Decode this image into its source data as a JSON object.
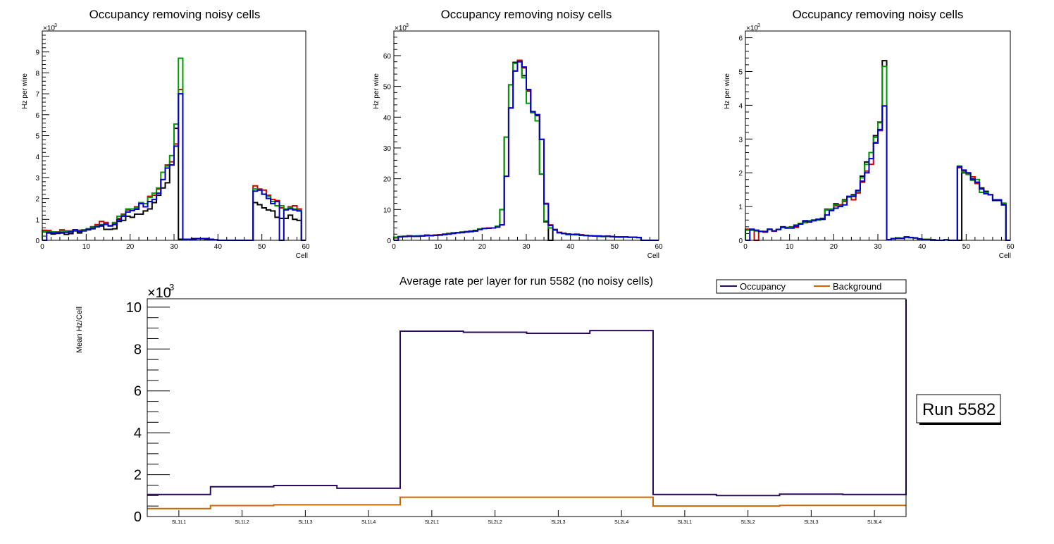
{
  "chart_data": [
    {
      "type": "histogram",
      "title": "Occupancy removing noisy cells",
      "xlabel": "Cell",
      "ylabel": "Hz per wire",
      "y_multiplier": "×10^3",
      "xlim": [
        0,
        60
      ],
      "ylim": [
        0,
        10
      ],
      "x_ticks": [
        0,
        10,
        20,
        30,
        40,
        50,
        60
      ],
      "y_ticks": [
        0,
        1,
        2,
        3,
        4,
        5,
        6,
        7,
        8,
        9
      ],
      "bin_edges_start": 0,
      "bin_width": 1,
      "series": [
        {
          "name": "layer-black",
          "color": "#000000",
          "values": [
            0.4,
            0.35,
            0.3,
            0.33,
            0.35,
            0.28,
            0.32,
            0.45,
            0.35,
            0.45,
            0.5,
            0.55,
            0.65,
            0.68,
            0.52,
            0.52,
            0.55,
            0.9,
            0.95,
            1.15,
            1.1,
            1.25,
            1.25,
            1.4,
            1.5,
            1.8,
            2.15,
            2.5,
            2.75,
            3.6,
            5.35,
            0.05,
            0.05,
            0.05,
            0.08,
            0.08,
            0.08,
            0.05,
            0.02,
            0.02,
            0,
            0,
            0,
            0,
            0,
            0,
            0,
            0,
            1.8,
            1.7,
            1.55,
            1.45,
            1.4,
            1.1,
            1.05,
            1.05,
            1.2,
            1.0,
            0.95,
            0
          ]
        },
        {
          "name": "layer-red",
          "color": "#cc0000",
          "values": [
            0.48,
            0.47,
            0.4,
            0.4,
            0.5,
            0.45,
            0.45,
            0.5,
            0.48,
            0.5,
            0.55,
            0.65,
            0.75,
            0.9,
            0.85,
            0.7,
            0.8,
            1.05,
            1.25,
            1.45,
            1.5,
            1.6,
            1.8,
            1.75,
            2.1,
            2.15,
            2.45,
            2.9,
            3.6,
            3.75,
            4.6,
            7.2,
            0.05,
            0.05,
            0.05,
            0.08,
            0.08,
            0.08,
            0.05,
            0.02,
            0,
            0,
            0,
            0,
            0,
            0,
            0,
            0,
            2.6,
            2.45,
            2.4,
            2.15,
            1.95,
            1.9,
            1.55,
            1.5,
            1.6,
            1.65,
            1.5,
            0
          ]
        },
        {
          "name": "layer-green",
          "color": "#009900",
          "values": [
            0.42,
            0.42,
            0.4,
            0.38,
            0.45,
            0.42,
            0.42,
            0.48,
            0.45,
            0.5,
            0.55,
            0.62,
            0.7,
            0.75,
            0.75,
            0.7,
            0.85,
            1.15,
            1.2,
            1.5,
            1.5,
            1.55,
            1.8,
            1.75,
            2.05,
            2.25,
            2.5,
            3.25,
            3.55,
            4.05,
            5.55,
            8.7,
            0.05,
            0.05,
            0.05,
            0.08,
            0.08,
            0.08,
            0.05,
            0.02,
            0,
            0,
            0,
            0,
            0,
            0,
            0,
            0,
            2.45,
            2.4,
            2.2,
            2.1,
            1.85,
            1.65,
            1.65,
            1.5,
            1.55,
            1.5,
            1.45,
            0
          ]
        },
        {
          "name": "layer-blue",
          "color": "#0000cc",
          "values": [
            0,
            0.38,
            0.35,
            0.36,
            0.38,
            0.38,
            0.4,
            0.5,
            0.42,
            0.45,
            0.52,
            0.58,
            0.65,
            0.72,
            0.78,
            0.68,
            0.75,
            0.98,
            1.15,
            1.35,
            1.42,
            1.48,
            1.75,
            1.6,
            1.85,
            1.95,
            2.25,
            2.9,
            3.45,
            3.6,
            4.5,
            7.0,
            0.05,
            0.05,
            0.05,
            0.08,
            0.08,
            0.08,
            0.05,
            0.02,
            0,
            0,
            0,
            0,
            0,
            0,
            0,
            0,
            2.35,
            2.4,
            2.2,
            2.0,
            1.75,
            1.85,
            0,
            1.45,
            1.5,
            1.45,
            1.4,
            0
          ]
        }
      ]
    },
    {
      "type": "histogram",
      "title": "Occupancy removing noisy cells",
      "xlabel": "Cell",
      "ylabel": "Hz per wire",
      "y_multiplier": "×10^3",
      "xlim": [
        0,
        60
      ],
      "ylim": [
        0,
        68
      ],
      "x_ticks": [
        0,
        10,
        20,
        30,
        40,
        50,
        60
      ],
      "y_ticks": [
        0,
        10,
        20,
        30,
        40,
        50,
        60
      ],
      "bin_edges_start": 0,
      "bin_width": 1,
      "series": [
        {
          "name": "layer-black",
          "color": "#000000",
          "values": [
            0.8,
            1.2,
            1.3,
            1.3,
            1.3,
            1.4,
            1.5,
            1.7,
            1.6,
            1.7,
            1.8,
            2.0,
            2.2,
            2.4,
            2.5,
            2.7,
            2.8,
            3.0,
            3.2,
            3.6,
            3.9,
            4.0,
            4.0,
            4.5,
            10.0,
            33.5,
            50.5,
            57.8,
            58.2,
            53.5,
            48.5,
            41.5,
            40.5,
            21.5,
            6.0,
            0,
            3.5,
            2.5,
            2.2,
            2.0,
            1.9,
            1.9,
            1.7,
            1.6,
            1.5,
            1.4,
            1.3,
            1.3,
            1.3,
            1.2,
            1.1,
            1.1,
            1.1,
            1.0,
            1.0,
            0.9,
            0,
            0,
            0,
            0
          ]
        },
        {
          "name": "layer-red",
          "color": "#cc0000",
          "values": [
            0.8,
            1.2,
            1.3,
            1.5,
            1.3,
            1.4,
            1.5,
            1.6,
            1.6,
            1.7,
            1.8,
            1.9,
            2.1,
            2.3,
            2.5,
            2.6,
            2.8,
            2.9,
            3.1,
            3.6,
            3.9,
            4.0,
            4.0,
            4.5,
            5.0,
            20.8,
            43.0,
            55.0,
            58.5,
            56.0,
            48.8,
            41.8,
            40.8,
            32.8,
            12.0,
            5.0,
            3.5,
            2.6,
            2.3,
            2.0,
            1.9,
            2.0,
            1.8,
            1.6,
            1.5,
            1.4,
            1.4,
            1.3,
            1.4,
            1.2,
            1.1,
            1.1,
            1.1,
            1.0,
            1.0,
            0.9,
            0,
            0,
            0,
            0
          ]
        },
        {
          "name": "layer-green",
          "color": "#009900",
          "values": [
            1.0,
            1.2,
            1.3,
            1.3,
            1.4,
            1.4,
            1.4,
            1.5,
            1.5,
            1.6,
            1.7,
            1.9,
            2.1,
            2.3,
            2.4,
            2.6,
            2.7,
            2.9,
            3.1,
            3.7,
            3.9,
            3.9,
            4.0,
            4.6,
            10.0,
            33.5,
            50.5,
            57.5,
            58.0,
            52.8,
            44.5,
            41.5,
            38.8,
            21.5,
            6.3,
            4.0,
            3.3,
            2.4,
            2.2,
            1.8,
            1.8,
            1.8,
            1.6,
            1.5,
            1.4,
            1.4,
            1.3,
            1.2,
            1.3,
            1.2,
            1.1,
            1.0,
            1.1,
            1.0,
            1.0,
            0.9,
            0,
            0,
            0,
            0
          ]
        },
        {
          "name": "layer-blue",
          "color": "#0000cc",
          "values": [
            0,
            1.1,
            1.2,
            1.3,
            1.3,
            1.3,
            1.4,
            1.5,
            1.5,
            1.6,
            1.7,
            1.8,
            2.0,
            2.2,
            2.4,
            2.5,
            2.7,
            2.8,
            3.0,
            3.5,
            3.8,
            3.9,
            4.0,
            4.3,
            5.0,
            20.8,
            43.0,
            55.0,
            58.0,
            56.3,
            49.0,
            41.8,
            40.8,
            32.8,
            11.8,
            4.8,
            3.4,
            2.5,
            2.2,
            2.0,
            1.9,
            1.8,
            1.7,
            1.6,
            1.5,
            1.4,
            1.4,
            1.3,
            1.3,
            1.2,
            1.1,
            1.1,
            1.1,
            1.0,
            1.0,
            0.9,
            0,
            0,
            0,
            0
          ]
        }
      ]
    },
    {
      "type": "histogram",
      "title": "Occupancy removing noisy cells",
      "xlabel": "Cell",
      "ylabel": "Hz per wire",
      "y_multiplier": "×10^3",
      "xlim": [
        0,
        60
      ],
      "ylim": [
        0,
        6.2
      ],
      "x_ticks": [
        0,
        10,
        20,
        30,
        40,
        50,
        60
      ],
      "y_ticks": [
        0,
        1,
        2,
        3,
        4,
        5,
        6
      ],
      "bin_edges_start": 0,
      "bin_width": 1,
      "series": [
        {
          "name": "layer-black",
          "color": "#000000",
          "values": [
            0.32,
            0.3,
            0.28,
            0.26,
            0.26,
            0.32,
            0.28,
            0.32,
            0.38,
            0.38,
            0.38,
            0.45,
            0.5,
            0.55,
            0.58,
            0.6,
            0.62,
            0.65,
            0.92,
            0.92,
            1.08,
            1.05,
            1.2,
            1.3,
            1.35,
            1.45,
            1.9,
            2.32,
            2.6,
            3.1,
            3.5,
            5.32,
            0.02,
            0.05,
            0.06,
            0.06,
            0.1,
            0.08,
            0.07,
            0.04,
            0.03,
            0.03,
            0.02,
            0,
            0,
            0.01,
            0,
            0,
            0,
            2.0,
            1.98,
            1.82,
            1.72,
            1.55,
            1.45,
            1.35,
            1.18,
            1.18,
            1.08,
            0
          ]
        },
        {
          "name": "layer-red",
          "color": "#cc0000",
          "values": [
            0.33,
            0.3,
            0,
            0.26,
            0.24,
            0.32,
            0.27,
            0.32,
            0.38,
            0.37,
            0.4,
            0.38,
            0.5,
            0.52,
            0.56,
            0.58,
            0.6,
            0.62,
            0.9,
            0.92,
            1.02,
            1.05,
            1.15,
            1.28,
            1.2,
            1.4,
            1.72,
            2.05,
            2.25,
            2.9,
            3.25,
            3.98,
            0.02,
            0.05,
            0.06,
            0.06,
            0.1,
            0.08,
            0.07,
            0.04,
            0.03,
            0.02,
            0,
            0,
            0,
            0.01,
            0,
            0,
            2.15,
            2.05,
            1.98,
            1.88,
            1.68,
            1.52,
            1.4,
            1.35,
            1.2,
            1.2,
            1.05,
            0
          ]
        },
        {
          "name": "layer-green",
          "color": "#009900",
          "values": [
            0.3,
            0.3,
            0.28,
            0.27,
            0.27,
            0.33,
            0.28,
            0.32,
            0.4,
            0.38,
            0.38,
            0.43,
            0.5,
            0.53,
            0.58,
            0.6,
            0.6,
            0.63,
            0.9,
            0.92,
            1.05,
            1.0,
            1.18,
            1.28,
            1.32,
            1.45,
            1.85,
            2.25,
            2.6,
            3.05,
            3.48,
            5.15,
            0.02,
            0.05,
            0.07,
            0.06,
            0.08,
            0.08,
            0.07,
            0.04,
            0.03,
            0.03,
            0.02,
            0,
            0,
            0.02,
            0,
            0,
            2.2,
            2.02,
            1.95,
            1.78,
            1.8,
            1.42,
            1.42,
            1.35,
            1.2,
            1.2,
            1.1,
            0
          ]
        },
        {
          "name": "layer-blue",
          "color": "#0000cc",
          "values": [
            0,
            0.33,
            0.3,
            0.26,
            0.25,
            0.33,
            0.28,
            0.32,
            0.4,
            0.36,
            0.36,
            0.42,
            0.48,
            0.58,
            0.54,
            0.58,
            0.62,
            0.62,
            0.75,
            0.88,
            0.95,
            1.0,
            1.05,
            1.3,
            1.3,
            1.48,
            1.75,
            2.0,
            2.42,
            2.88,
            3.28,
            3.98,
            0.02,
            0.05,
            0.06,
            0.06,
            0.1,
            0.08,
            0.07,
            0.04,
            0.02,
            0.02,
            0.01,
            0,
            0,
            0.01,
            0,
            0,
            2.18,
            2.08,
            2.0,
            1.8,
            1.72,
            1.52,
            1.38,
            1.35,
            1.2,
            1.2,
            1.05,
            0
          ]
        }
      ]
    },
    {
      "type": "histogram",
      "title": "Average rate per layer for run 5582 (no noisy cells)",
      "xlabel": "",
      "ylabel": "Mean Hz/Cell",
      "y_multiplier": "×10^3",
      "ylim": [
        0,
        10.4
      ],
      "y_ticks": [
        0,
        2,
        4,
        6,
        8,
        10
      ],
      "categories": [
        "SL1L1",
        "SL1L2",
        "SL1L3",
        "SL1L4",
        "SL2L1",
        "SL2L2",
        "SL2L3",
        "SL2L4",
        "SL3L1",
        "SL3L2",
        "SL3L3",
        "SL3L4"
      ],
      "legend": "top-right",
      "series": [
        {
          "name": "Occupancy",
          "color": "#2a0a5e",
          "values": [
            1.05,
            1.42,
            1.48,
            1.35,
            8.85,
            8.8,
            8.75,
            8.88,
            1.05,
            1.0,
            1.07,
            1.05
          ]
        },
        {
          "name": "Background",
          "color": "#cc6600",
          "values": [
            0.38,
            0.52,
            0.56,
            0.56,
            0.92,
            0.92,
            0.92,
            0.92,
            0.5,
            0.5,
            0.53,
            0.53
          ]
        }
      ]
    }
  ],
  "annotation": {
    "run_label": "Run 5582"
  },
  "labels": {
    "multiplier_small": "×10",
    "multiplier_exp": "3"
  }
}
